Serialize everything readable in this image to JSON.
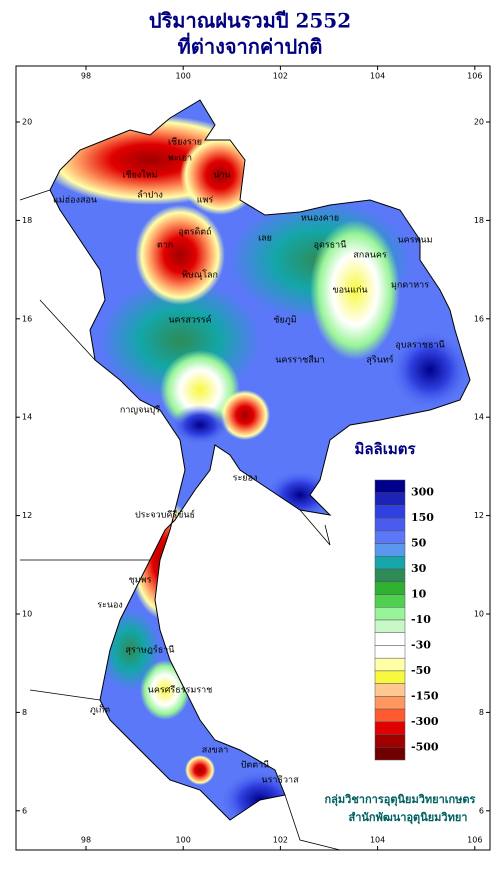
{
  "title": [
    "ปริมาณฝนรวมปี 2552",
    "ที่ต่างจากค่าปกติ"
  ],
  "map": {
    "xticks": [
      98,
      100,
      102,
      104,
      106
    ],
    "yticks": [
      6,
      8,
      10,
      12,
      14,
      16,
      18,
      20
    ],
    "provinces": [
      "เชียงราย",
      "เชียงใหม่",
      "พะเยา",
      "น่าน",
      "แพร่",
      "ลำปาง",
      "แม่ฮ่องสอน",
      "ตาก",
      "อุตรดิตถ์",
      "พิษณุโลก",
      "เลย",
      "หนองคาย",
      "อุดรธานี",
      "นครพนม",
      "สกลนคร",
      "ขอนแก่น",
      "มุกดาหาร",
      "ชัยภูมิ",
      "อุบลราชธานี",
      "สุรินทร์",
      "นครราชสีมา",
      "นครสวรรค์",
      "กาญจนบุรี",
      "ระยอง",
      "ประจวบคีรีขันธ์",
      "ชุมพร",
      "ระนอง",
      "สุราษฎร์ธานี",
      "ภูเก็ต",
      "นครศรีธรรมราช",
      "สงขลา",
      "ปัตตานี",
      "นราธิวาส"
    ]
  },
  "legend": {
    "title": "มิลลิเมตร",
    "colors": [
      "#00008b",
      "#1c24b8",
      "#3040e0",
      "#4a5cf0",
      "#5a78f8",
      "#5a98f0",
      "#14a6a8",
      "#2e8b57",
      "#30b030",
      "#50d050",
      "#98f498",
      "#c8f8c8",
      "#ffffff",
      "#ffffff",
      "#ffffa8",
      "#f8f840",
      "#ffc890",
      "#ff9860",
      "#ff5a30",
      "#e00000",
      "#a00000",
      "#700000"
    ],
    "labels": [
      "300",
      "150",
      "50",
      "30",
      "10",
      "-10",
      "-30",
      "-50",
      "-150",
      "-300",
      "-500"
    ]
  },
  "credits": [
    "กลุ่มวิชาการอุตุนิยมวิทยาเกษตร",
    "สำนักพัฒนาอุตุนิยมวิทยา"
  ]
}
